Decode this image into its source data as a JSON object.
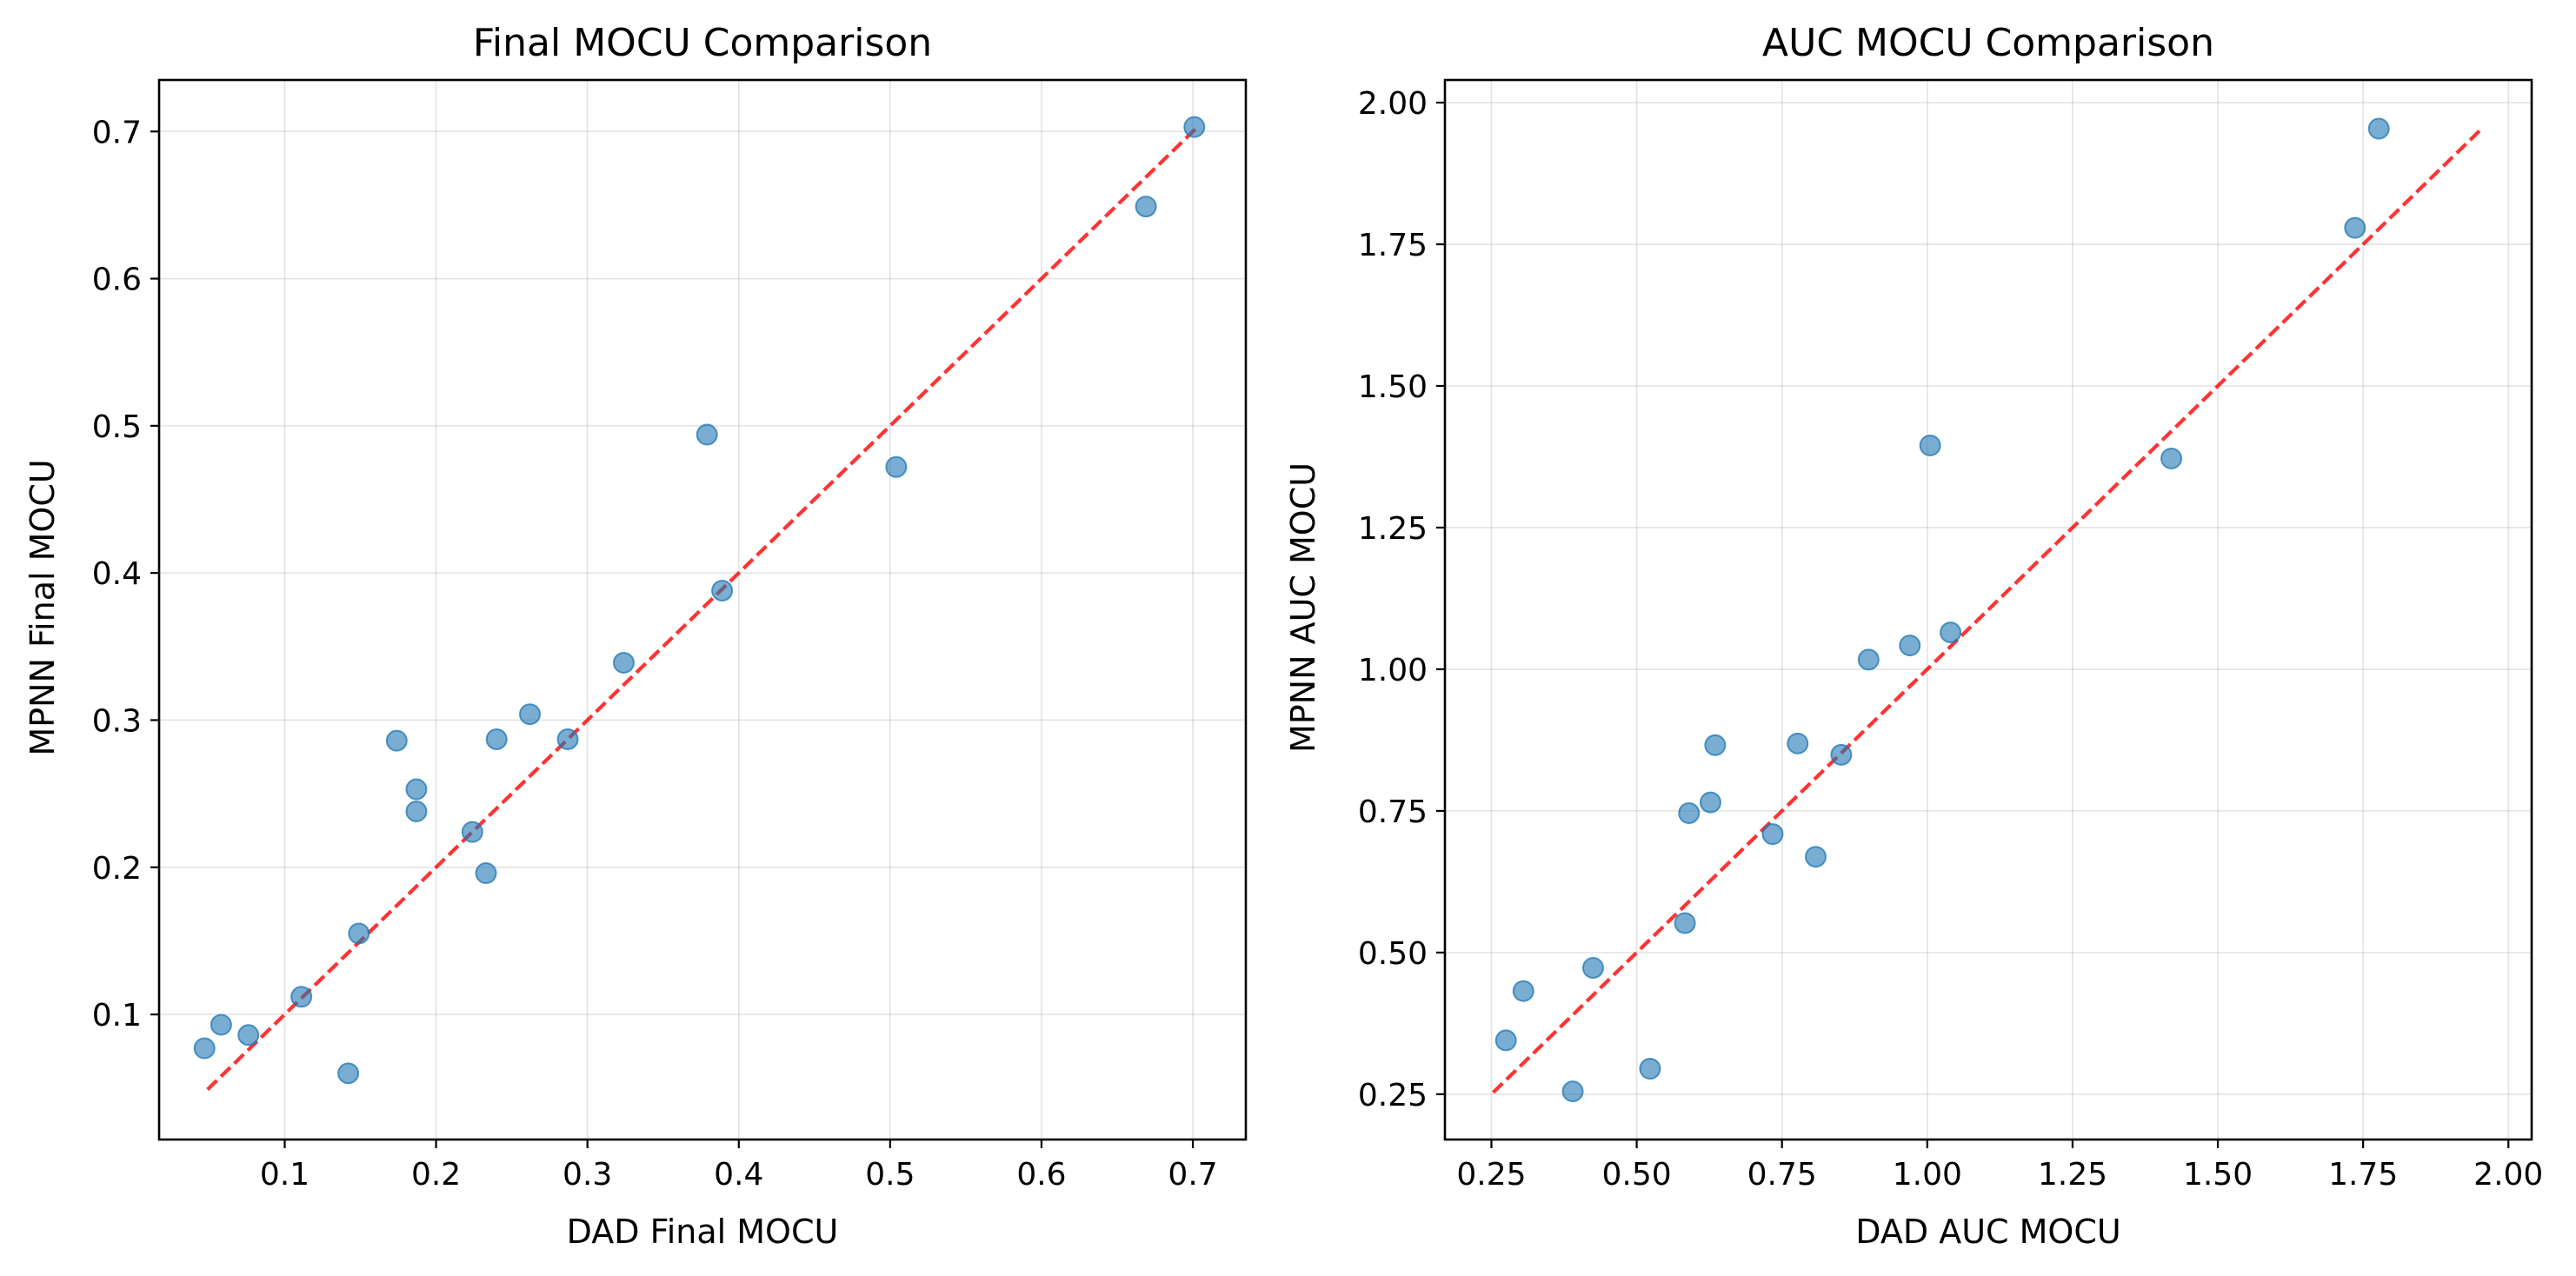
{
  "colors": {
    "points": "#1f77b4",
    "identity_line": "#ff0000",
    "grid": "#b0b0b0",
    "axis": "#000000"
  },
  "chart_data": [
    {
      "type": "scatter",
      "title": "Final MOCU Comparison",
      "xlabel": "DAD Final MOCU",
      "ylabel": "MPNN Final MOCU",
      "xlim": [
        0.017,
        0.735
      ],
      "ylim": [
        0.015,
        0.735
      ],
      "xticks": [
        0.1,
        0.2,
        0.3,
        0.4,
        0.5,
        0.6,
        0.7
      ],
      "xtick_labels": [
        "0.1",
        "0.2",
        "0.3",
        "0.4",
        "0.5",
        "0.6",
        "0.7"
      ],
      "yticks": [
        0.1,
        0.2,
        0.3,
        0.4,
        0.5,
        0.6,
        0.7
      ],
      "ytick_labels": [
        "0.1",
        "0.2",
        "0.3",
        "0.4",
        "0.5",
        "0.6",
        "0.7"
      ],
      "grid": true,
      "identity_line": {
        "from": [
          0.049,
          0.049
        ],
        "to": [
          0.702,
          0.702
        ],
        "style": "dashed"
      },
      "points": [
        {
          "x": 0.047,
          "y": 0.077
        },
        {
          "x": 0.058,
          "y": 0.093
        },
        {
          "x": 0.076,
          "y": 0.086
        },
        {
          "x": 0.111,
          "y": 0.112
        },
        {
          "x": 0.142,
          "y": 0.06
        },
        {
          "x": 0.149,
          "y": 0.155
        },
        {
          "x": 0.174,
          "y": 0.286
        },
        {
          "x": 0.187,
          "y": 0.253
        },
        {
          "x": 0.187,
          "y": 0.238
        },
        {
          "x": 0.224,
          "y": 0.224
        },
        {
          "x": 0.233,
          "y": 0.196
        },
        {
          "x": 0.24,
          "y": 0.287
        },
        {
          "x": 0.262,
          "y": 0.304
        },
        {
          "x": 0.287,
          "y": 0.287
        },
        {
          "x": 0.324,
          "y": 0.339
        },
        {
          "x": 0.379,
          "y": 0.494
        },
        {
          "x": 0.389,
          "y": 0.388
        },
        {
          "x": 0.504,
          "y": 0.472
        },
        {
          "x": 0.669,
          "y": 0.649
        },
        {
          "x": 0.701,
          "y": 0.703
        }
      ]
    },
    {
      "type": "scatter",
      "title": "AUC MOCU Comparison",
      "xlabel": "DAD AUC MOCU",
      "ylabel": "MPNN AUC MOCU",
      "xlim": [
        0.17,
        2.04
      ],
      "ylim": [
        0.17,
        2.04
      ],
      "xticks": [
        0.25,
        0.5,
        0.75,
        1.0,
        1.25,
        1.5,
        1.75,
        2.0
      ],
      "xtick_labels": [
        "0.25",
        "0.50",
        "0.75",
        "1.00",
        "1.25",
        "1.50",
        "1.75",
        "2.00"
      ],
      "yticks": [
        0.25,
        0.5,
        0.75,
        1.0,
        1.25,
        1.5,
        1.75,
        2.0
      ],
      "ytick_labels": [
        "0.25",
        "0.50",
        "0.75",
        "1.00",
        "1.25",
        "1.50",
        "1.75",
        "2.00"
      ],
      "grid": true,
      "identity_line": {
        "from": [
          0.253,
          0.253
        ],
        "to": [
          1.95,
          1.95
        ],
        "style": "dashed"
      },
      "points": [
        {
          "x": 0.275,
          "y": 0.345
        },
        {
          "x": 0.305,
          "y": 0.432
        },
        {
          "x": 0.39,
          "y": 0.255
        },
        {
          "x": 0.425,
          "y": 0.473
        },
        {
          "x": 0.523,
          "y": 0.295
        },
        {
          "x": 0.583,
          "y": 0.552
        },
        {
          "x": 0.59,
          "y": 0.746
        },
        {
          "x": 0.627,
          "y": 0.765
        },
        {
          "x": 0.635,
          "y": 0.866
        },
        {
          "x": 0.734,
          "y": 0.709
        },
        {
          "x": 0.777,
          "y": 0.869
        },
        {
          "x": 0.808,
          "y": 0.669
        },
        {
          "x": 0.852,
          "y": 0.849
        },
        {
          "x": 0.899,
          "y": 1.017
        },
        {
          "x": 0.97,
          "y": 1.042
        },
        {
          "x": 1.005,
          "y": 1.395
        },
        {
          "x": 1.04,
          "y": 1.065
        },
        {
          "x": 1.42,
          "y": 1.372
        },
        {
          "x": 1.736,
          "y": 1.779
        },
        {
          "x": 1.777,
          "y": 1.954
        }
      ]
    }
  ]
}
